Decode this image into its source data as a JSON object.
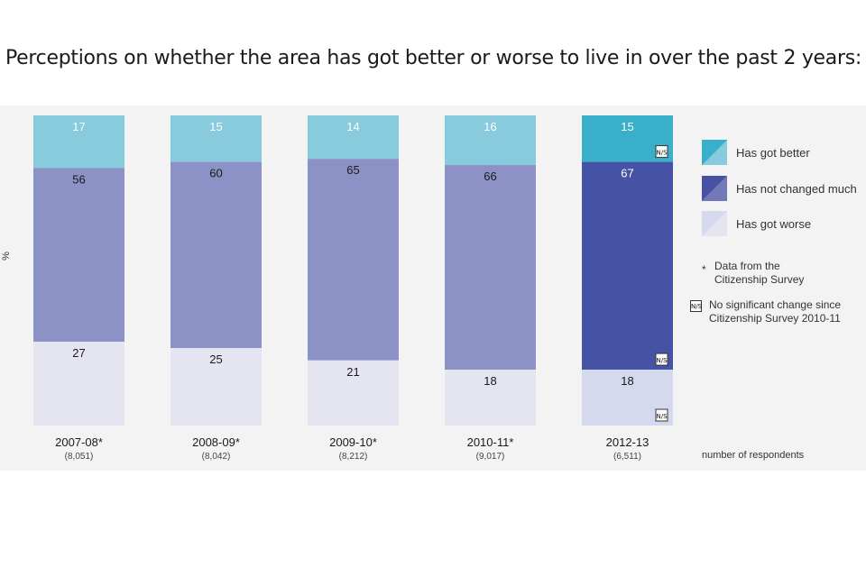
{
  "title": "Perceptions on whether the area has got better or worse to live in over the past 2 years:",
  "chart_data": {
    "type": "bar",
    "stacked": true,
    "title": "Perceptions on whether the area has got better or worse to live in over the past 2 years:",
    "ylabel": "%",
    "xlabel": "",
    "ylim": [
      0,
      100
    ],
    "categories": [
      "2007-08*",
      "2008-09*",
      "2009-10*",
      "2010-11*",
      "2012-13"
    ],
    "respondents": [
      "(8,051)",
      "(8,042)",
      "(8,212)",
      "(9,017)",
      "(6,511)"
    ],
    "series": [
      {
        "name": "Has got better",
        "values": [
          17,
          15,
          14,
          16,
          15
        ]
      },
      {
        "name": "Has not changed much",
        "values": [
          56,
          60,
          65,
          66,
          67
        ]
      },
      {
        "name": "Has got worse",
        "values": [
          27,
          25,
          21,
          18,
          18
        ]
      }
    ],
    "ns_markers": {
      "category": "2012-13",
      "series": [
        "Has got better",
        "Has not changed much",
        "Has got worse"
      ]
    },
    "legend_position": "right",
    "grid": false
  },
  "colors": {
    "better_old": "#88cbdc",
    "unchanged_old": "#8d92c6",
    "worse_old": "#e4e5f1",
    "better_new": "#3aafca",
    "unchanged_new": "#4653a5",
    "worse_new": "#d5d9ee"
  },
  "legend": {
    "items": [
      "Has got better",
      "Has not changed much",
      "Has got worse"
    ],
    "asterisk_symbol": "*",
    "asterisk_note": "Data from the Citizenship Survey",
    "ns_symbol": "N/S",
    "ns_note": "No significant change since Citizenship Survey 2010-11"
  },
  "respondents_label": "number of respondents",
  "ylabel": "%"
}
